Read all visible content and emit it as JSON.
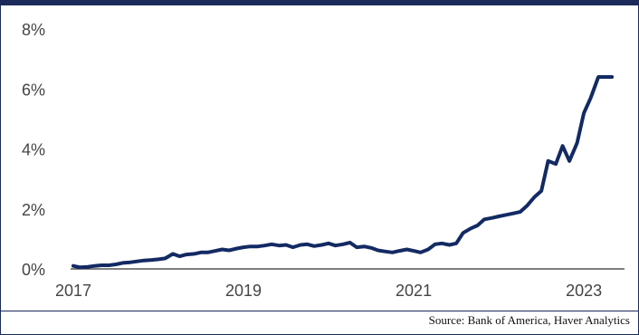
{
  "chart_data": {
    "type": "line",
    "title": "",
    "xlabel": "",
    "ylabel": "",
    "x_ticks": [
      "2017",
      "2019",
      "2021",
      "2023"
    ],
    "y_ticks": [
      "0%",
      "2%",
      "4%",
      "6%",
      "8%"
    ],
    "ylim": [
      0,
      8
    ],
    "xlim": [
      2017,
      2023.4
    ],
    "grid": false,
    "legend": "none",
    "series": [
      {
        "color": "#132a63",
        "x": [
          2017.0,
          2017.08,
          2017.17,
          2017.25,
          2017.33,
          2017.42,
          2017.5,
          2017.58,
          2017.67,
          2017.75,
          2017.83,
          2017.92,
          2018.0,
          2018.08,
          2018.17,
          2018.25,
          2018.33,
          2018.42,
          2018.5,
          2018.58,
          2018.67,
          2018.75,
          2018.83,
          2018.92,
          2019.0,
          2019.08,
          2019.17,
          2019.25,
          2019.33,
          2019.42,
          2019.5,
          2019.58,
          2019.67,
          2019.75,
          2019.83,
          2019.92,
          2020.0,
          2020.08,
          2020.17,
          2020.25,
          2020.33,
          2020.42,
          2020.5,
          2020.58,
          2020.67,
          2020.75,
          2020.83,
          2020.92,
          2021.0,
          2021.08,
          2021.17,
          2021.25,
          2021.33,
          2021.42,
          2021.5,
          2021.58,
          2021.67,
          2021.75,
          2021.83,
          2021.92,
          2022.0,
          2022.08,
          2022.17,
          2022.25,
          2022.33,
          2022.42,
          2022.5,
          2022.58,
          2022.67,
          2022.75,
          2022.83,
          2022.92,
          2023.0,
          2023.08,
          2023.17,
          2023.25,
          2023.33
        ],
        "values": [
          0.1,
          0.05,
          0.07,
          0.1,
          0.12,
          0.12,
          0.15,
          0.2,
          0.22,
          0.25,
          0.28,
          0.3,
          0.32,
          0.35,
          0.5,
          0.42,
          0.48,
          0.5,
          0.55,
          0.55,
          0.6,
          0.65,
          0.62,
          0.68,
          0.72,
          0.75,
          0.75,
          0.78,
          0.82,
          0.78,
          0.8,
          0.72,
          0.8,
          0.82,
          0.76,
          0.8,
          0.85,
          0.78,
          0.82,
          0.88,
          0.72,
          0.75,
          0.7,
          0.62,
          0.58,
          0.55,
          0.6,
          0.65,
          0.6,
          0.55,
          0.65,
          0.82,
          0.85,
          0.8,
          0.85,
          1.2,
          1.35,
          1.45,
          1.65,
          1.7,
          1.75,
          1.8,
          1.85,
          1.9,
          2.1,
          2.4,
          2.6,
          3.6,
          3.5,
          4.1,
          3.6,
          4.2,
          5.2,
          5.7,
          6.4,
          6.4,
          6.4
        ]
      }
    ]
  },
  "footer": {
    "source_text": "Source: Bank of America, Haver Analytics"
  }
}
